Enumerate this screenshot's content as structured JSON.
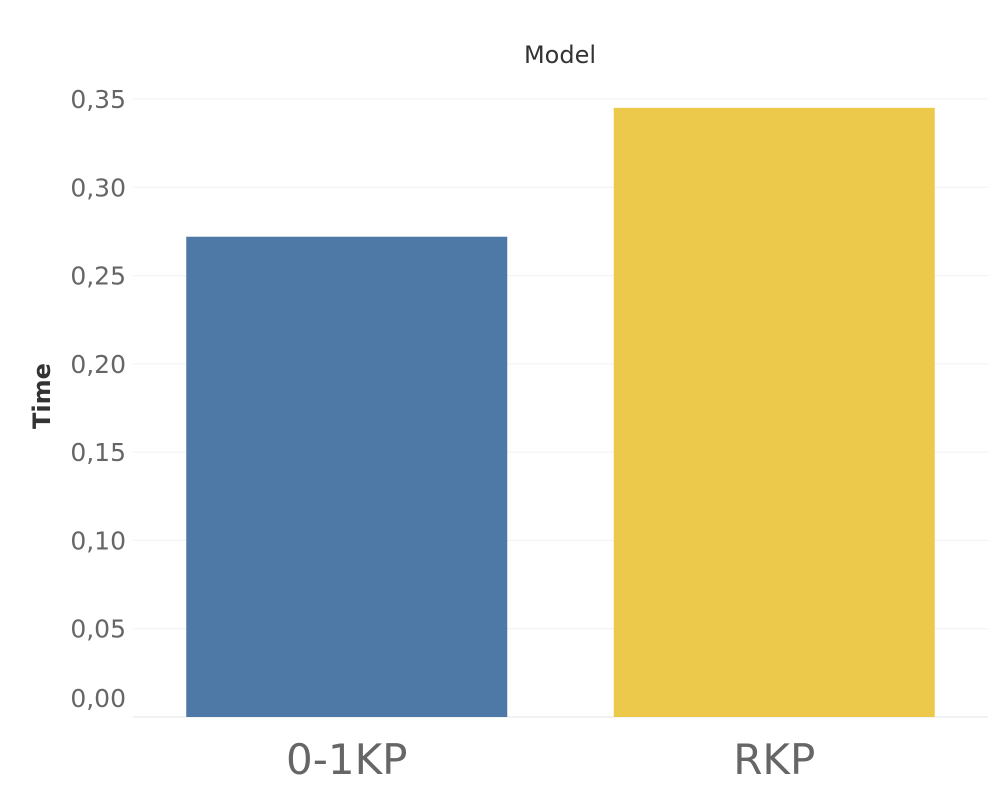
{
  "chart_data": {
    "type": "bar",
    "title": "Model",
    "xlabel": "",
    "ylabel": "Time",
    "categories": [
      "0-1KP",
      "RKP"
    ],
    "values": [
      0.272,
      0.345
    ],
    "colors": [
      "#4e79a7",
      "#ecc94b"
    ],
    "ylim": [
      0,
      0.35
    ],
    "yticks": [
      0.0,
      0.05,
      0.1,
      0.15,
      0.2,
      0.25,
      0.3,
      0.35
    ],
    "ytick_labels": [
      "0,00",
      "0,05",
      "0,10",
      "0,15",
      "0,20",
      "0,25",
      "0,30",
      "0,35"
    ],
    "grid": true,
    "legend": "none"
  }
}
